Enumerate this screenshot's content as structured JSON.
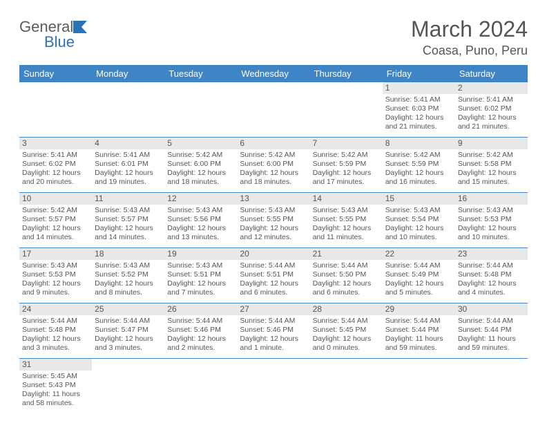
{
  "logo": {
    "general": "General",
    "blue": "Blue",
    "flag_color": "#2a73b8"
  },
  "title": "March 2024",
  "location": "Coasa, Puno, Peru",
  "day_headers": [
    "Sunday",
    "Monday",
    "Tuesday",
    "Wednesday",
    "Thursday",
    "Friday",
    "Saturday"
  ],
  "colors": {
    "header_bg": "#3d85c6",
    "header_fg": "#ffffff",
    "daynum_bg": "#e8e8e8",
    "text": "#555555",
    "rule": "#3d85c6"
  },
  "weeks": [
    [
      {
        "blank": true
      },
      {
        "blank": true
      },
      {
        "blank": true
      },
      {
        "blank": true
      },
      {
        "blank": true
      },
      {
        "day": "1",
        "sunrise": "Sunrise: 5:41 AM",
        "sunset": "Sunset: 6:03 PM",
        "daylight1": "Daylight: 12 hours",
        "daylight2": "and 21 minutes."
      },
      {
        "day": "2",
        "sunrise": "Sunrise: 5:41 AM",
        "sunset": "Sunset: 6:02 PM",
        "daylight1": "Daylight: 12 hours",
        "daylight2": "and 21 minutes."
      }
    ],
    [
      {
        "day": "3",
        "sunrise": "Sunrise: 5:41 AM",
        "sunset": "Sunset: 6:02 PM",
        "daylight1": "Daylight: 12 hours",
        "daylight2": "and 20 minutes."
      },
      {
        "day": "4",
        "sunrise": "Sunrise: 5:41 AM",
        "sunset": "Sunset: 6:01 PM",
        "daylight1": "Daylight: 12 hours",
        "daylight2": "and 19 minutes."
      },
      {
        "day": "5",
        "sunrise": "Sunrise: 5:42 AM",
        "sunset": "Sunset: 6:00 PM",
        "daylight1": "Daylight: 12 hours",
        "daylight2": "and 18 minutes."
      },
      {
        "day": "6",
        "sunrise": "Sunrise: 5:42 AM",
        "sunset": "Sunset: 6:00 PM",
        "daylight1": "Daylight: 12 hours",
        "daylight2": "and 18 minutes."
      },
      {
        "day": "7",
        "sunrise": "Sunrise: 5:42 AM",
        "sunset": "Sunset: 5:59 PM",
        "daylight1": "Daylight: 12 hours",
        "daylight2": "and 17 minutes."
      },
      {
        "day": "8",
        "sunrise": "Sunrise: 5:42 AM",
        "sunset": "Sunset: 5:59 PM",
        "daylight1": "Daylight: 12 hours",
        "daylight2": "and 16 minutes."
      },
      {
        "day": "9",
        "sunrise": "Sunrise: 5:42 AM",
        "sunset": "Sunset: 5:58 PM",
        "daylight1": "Daylight: 12 hours",
        "daylight2": "and 15 minutes."
      }
    ],
    [
      {
        "day": "10",
        "sunrise": "Sunrise: 5:42 AM",
        "sunset": "Sunset: 5:57 PM",
        "daylight1": "Daylight: 12 hours",
        "daylight2": "and 14 minutes."
      },
      {
        "day": "11",
        "sunrise": "Sunrise: 5:43 AM",
        "sunset": "Sunset: 5:57 PM",
        "daylight1": "Daylight: 12 hours",
        "daylight2": "and 14 minutes."
      },
      {
        "day": "12",
        "sunrise": "Sunrise: 5:43 AM",
        "sunset": "Sunset: 5:56 PM",
        "daylight1": "Daylight: 12 hours",
        "daylight2": "and 13 minutes."
      },
      {
        "day": "13",
        "sunrise": "Sunrise: 5:43 AM",
        "sunset": "Sunset: 5:55 PM",
        "daylight1": "Daylight: 12 hours",
        "daylight2": "and 12 minutes."
      },
      {
        "day": "14",
        "sunrise": "Sunrise: 5:43 AM",
        "sunset": "Sunset: 5:55 PM",
        "daylight1": "Daylight: 12 hours",
        "daylight2": "and 11 minutes."
      },
      {
        "day": "15",
        "sunrise": "Sunrise: 5:43 AM",
        "sunset": "Sunset: 5:54 PM",
        "daylight1": "Daylight: 12 hours",
        "daylight2": "and 10 minutes."
      },
      {
        "day": "16",
        "sunrise": "Sunrise: 5:43 AM",
        "sunset": "Sunset: 5:53 PM",
        "daylight1": "Daylight: 12 hours",
        "daylight2": "and 10 minutes."
      }
    ],
    [
      {
        "day": "17",
        "sunrise": "Sunrise: 5:43 AM",
        "sunset": "Sunset: 5:53 PM",
        "daylight1": "Daylight: 12 hours",
        "daylight2": "and 9 minutes."
      },
      {
        "day": "18",
        "sunrise": "Sunrise: 5:43 AM",
        "sunset": "Sunset: 5:52 PM",
        "daylight1": "Daylight: 12 hours",
        "daylight2": "and 8 minutes."
      },
      {
        "day": "19",
        "sunrise": "Sunrise: 5:43 AM",
        "sunset": "Sunset: 5:51 PM",
        "daylight1": "Daylight: 12 hours",
        "daylight2": "and 7 minutes."
      },
      {
        "day": "20",
        "sunrise": "Sunrise: 5:44 AM",
        "sunset": "Sunset: 5:51 PM",
        "daylight1": "Daylight: 12 hours",
        "daylight2": "and 6 minutes."
      },
      {
        "day": "21",
        "sunrise": "Sunrise: 5:44 AM",
        "sunset": "Sunset: 5:50 PM",
        "daylight1": "Daylight: 12 hours",
        "daylight2": "and 6 minutes."
      },
      {
        "day": "22",
        "sunrise": "Sunrise: 5:44 AM",
        "sunset": "Sunset: 5:49 PM",
        "daylight1": "Daylight: 12 hours",
        "daylight2": "and 5 minutes."
      },
      {
        "day": "23",
        "sunrise": "Sunrise: 5:44 AM",
        "sunset": "Sunset: 5:48 PM",
        "daylight1": "Daylight: 12 hours",
        "daylight2": "and 4 minutes."
      }
    ],
    [
      {
        "day": "24",
        "sunrise": "Sunrise: 5:44 AM",
        "sunset": "Sunset: 5:48 PM",
        "daylight1": "Daylight: 12 hours",
        "daylight2": "and 3 minutes."
      },
      {
        "day": "25",
        "sunrise": "Sunrise: 5:44 AM",
        "sunset": "Sunset: 5:47 PM",
        "daylight1": "Daylight: 12 hours",
        "daylight2": "and 3 minutes."
      },
      {
        "day": "26",
        "sunrise": "Sunrise: 5:44 AM",
        "sunset": "Sunset: 5:46 PM",
        "daylight1": "Daylight: 12 hours",
        "daylight2": "and 2 minutes."
      },
      {
        "day": "27",
        "sunrise": "Sunrise: 5:44 AM",
        "sunset": "Sunset: 5:46 PM",
        "daylight1": "Daylight: 12 hours",
        "daylight2": "and 1 minute."
      },
      {
        "day": "28",
        "sunrise": "Sunrise: 5:44 AM",
        "sunset": "Sunset: 5:45 PM",
        "daylight1": "Daylight: 12 hours",
        "daylight2": "and 0 minutes."
      },
      {
        "day": "29",
        "sunrise": "Sunrise: 5:44 AM",
        "sunset": "Sunset: 5:44 PM",
        "daylight1": "Daylight: 11 hours",
        "daylight2": "and 59 minutes."
      },
      {
        "day": "30",
        "sunrise": "Sunrise: 5:44 AM",
        "sunset": "Sunset: 5:44 PM",
        "daylight1": "Daylight: 11 hours",
        "daylight2": "and 59 minutes."
      }
    ],
    [
      {
        "day": "31",
        "sunrise": "Sunrise: 5:45 AM",
        "sunset": "Sunset: 5:43 PM",
        "daylight1": "Daylight: 11 hours",
        "daylight2": "and 58 minutes."
      },
      {
        "blank": true
      },
      {
        "blank": true
      },
      {
        "blank": true
      },
      {
        "blank": true
      },
      {
        "blank": true
      },
      {
        "blank": true
      }
    ]
  ]
}
